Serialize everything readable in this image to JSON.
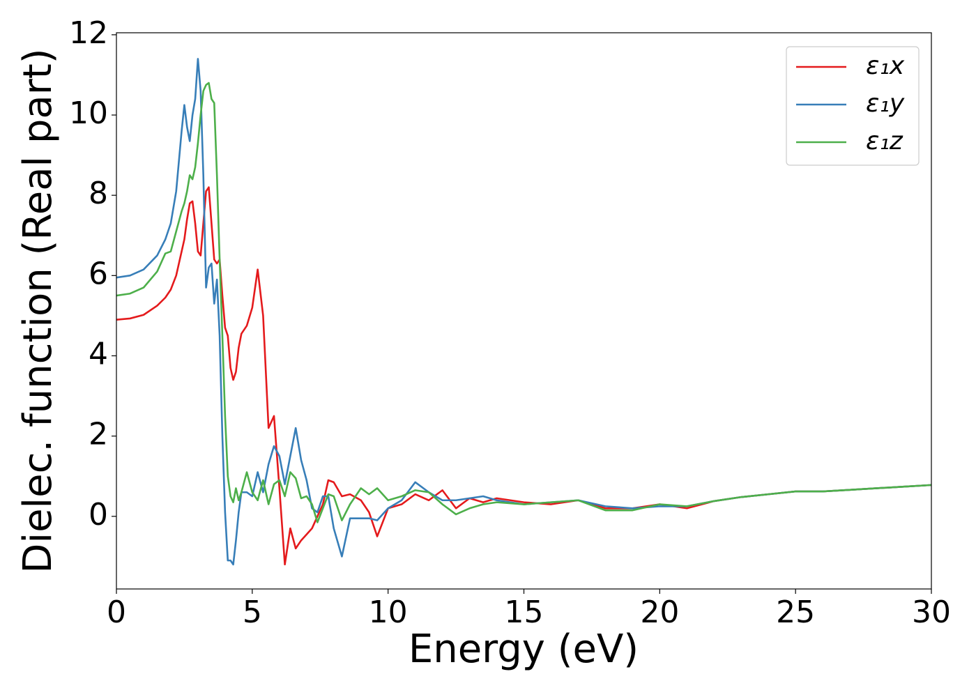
{
  "chart_data": {
    "type": "line",
    "xlabel": "Energy (eV)",
    "ylabel": "Dielec. function (Real part)",
    "xlim": [
      0,
      30
    ],
    "ylim": [
      -1.81,
      12.05
    ],
    "xticks": [
      0,
      5,
      10,
      15,
      20,
      25,
      30
    ],
    "yticks": [
      0,
      2,
      4,
      6,
      8,
      10,
      12
    ],
    "legend": "upper right",
    "x": [
      0,
      0.5,
      1,
      1.5,
      1.8,
      2,
      2.2,
      2.4,
      2.5,
      2.6,
      2.7,
      2.8,
      2.9,
      3.0,
      3.1,
      3.2,
      3.3,
      3.4,
      3.5,
      3.6,
      3.7,
      3.8,
      3.9,
      4.0,
      4.1,
      4.2,
      4.3,
      4.4,
      4.5,
      4.6,
      4.8,
      5.0,
      5.2,
      5.4,
      5.6,
      5.8,
      6.0,
      6.2,
      6.4,
      6.6,
      6.8,
      7.0,
      7.2,
      7.4,
      7.6,
      7.8,
      8.0,
      8.3,
      8.6,
      9.0,
      9.3,
      9.6,
      10,
      10.5,
      11,
      11.5,
      12,
      12.5,
      13,
      13.5,
      14,
      15,
      16,
      17,
      18,
      19,
      20,
      21,
      22,
      23,
      24,
      25,
      26,
      27,
      28,
      29,
      30
    ],
    "series": [
      {
        "name": "ε₁x",
        "color": "#e41a1c",
        "values": [
          4.9,
          4.93,
          5.02,
          5.25,
          5.45,
          5.65,
          6.0,
          6.6,
          6.9,
          7.4,
          7.8,
          7.85,
          7.3,
          6.6,
          6.5,
          7.3,
          8.1,
          8.2,
          7.3,
          6.4,
          6.3,
          6.4,
          5.5,
          4.7,
          4.5,
          3.7,
          3.4,
          3.6,
          4.2,
          4.55,
          4.75,
          5.2,
          6.15,
          5.0,
          2.2,
          2.5,
          0.7,
          -1.2,
          -0.3,
          -0.8,
          -0.6,
          -0.45,
          -0.3,
          0.0,
          0.3,
          0.9,
          0.85,
          0.5,
          0.55,
          0.4,
          0.1,
          -0.5,
          0.2,
          0.3,
          0.55,
          0.4,
          0.65,
          0.2,
          0.45,
          0.35,
          0.45,
          0.35,
          0.3,
          0.4,
          0.2,
          0.2,
          0.3,
          0.2,
          0.38,
          0.48,
          0.55,
          0.62,
          0.62,
          0.66,
          0.7,
          0.74,
          0.78
        ]
      },
      {
        "name": "ε₁y",
        "color": "#377eb8",
        "values": [
          5.95,
          6.0,
          6.15,
          6.5,
          6.9,
          7.3,
          8.1,
          9.6,
          10.25,
          9.7,
          9.35,
          10.0,
          10.4,
          11.4,
          10.6,
          8.5,
          5.7,
          6.2,
          6.3,
          5.3,
          5.9,
          4.5,
          2.0,
          0.1,
          -1.1,
          -1.1,
          -1.2,
          -0.6,
          0.1,
          0.6,
          0.6,
          0.5,
          1.1,
          0.6,
          1.3,
          1.75,
          1.5,
          0.8,
          1.5,
          2.2,
          1.4,
          0.9,
          0.2,
          0.1,
          0.5,
          0.5,
          -0.3,
          -1.0,
          -0.05,
          -0.05,
          -0.05,
          -0.1,
          0.2,
          0.4,
          0.85,
          0.6,
          0.4,
          0.4,
          0.45,
          0.5,
          0.4,
          0.3,
          0.35,
          0.4,
          0.25,
          0.2,
          0.25,
          0.25,
          0.38,
          0.48,
          0.55,
          0.62,
          0.62,
          0.66,
          0.7,
          0.74,
          0.78
        ]
      },
      {
        "name": "ε₁z",
        "color": "#4daf4a",
        "values": [
          5.5,
          5.55,
          5.7,
          6.1,
          6.55,
          6.6,
          7.1,
          7.6,
          7.8,
          8.1,
          8.5,
          8.4,
          8.7,
          9.3,
          10.0,
          10.6,
          10.75,
          10.8,
          10.4,
          10.3,
          8.5,
          6.4,
          4.5,
          2.5,
          1.0,
          0.5,
          0.35,
          0.7,
          0.4,
          0.6,
          1.1,
          0.6,
          0.4,
          0.9,
          0.3,
          0.8,
          0.9,
          0.5,
          1.1,
          0.95,
          0.45,
          0.5,
          0.3,
          -0.15,
          0.2,
          0.55,
          0.5,
          -0.1,
          0.3,
          0.7,
          0.55,
          0.7,
          0.4,
          0.5,
          0.65,
          0.6,
          0.3,
          0.05,
          0.2,
          0.3,
          0.35,
          0.3,
          0.35,
          0.4,
          0.15,
          0.15,
          0.3,
          0.25,
          0.38,
          0.48,
          0.55,
          0.62,
          0.62,
          0.66,
          0.7,
          0.74,
          0.78
        ]
      }
    ]
  }
}
